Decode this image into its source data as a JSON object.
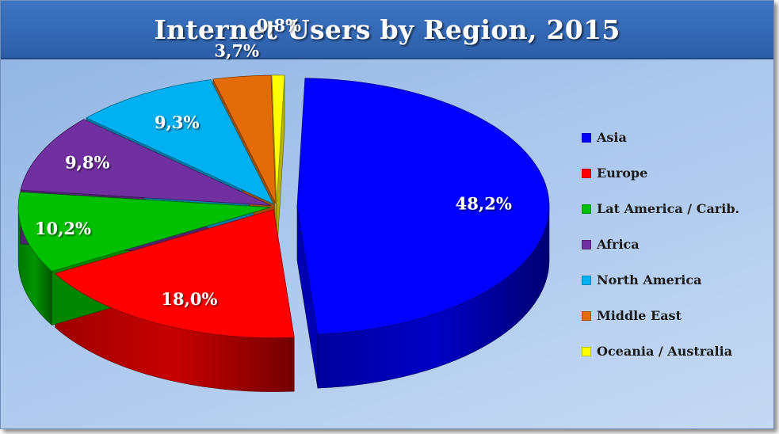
{
  "chart_data": {
    "type": "pie",
    "title": "Internet Users by Region, 2015",
    "style": "3d-exploded",
    "legend_position": "right",
    "categories": [
      "Asia",
      "Europe",
      "Lat America / Carib.",
      "Africa",
      "North America",
      "Middle East",
      "Oceania / Australia"
    ],
    "values": [
      48.2,
      18.0,
      10.2,
      9.8,
      9.3,
      3.7,
      0.8
    ],
    "data_labels": [
      "48,2%",
      "18,0%",
      "10,2%",
      "9,8%",
      "9,3%",
      "3,7%",
      "0,8%"
    ],
    "colors": [
      "#0000ff",
      "#ff0000",
      "#00c000",
      "#7030a0",
      "#00b0f0",
      "#e36c09",
      "#ffff00"
    ],
    "unit": "%"
  }
}
